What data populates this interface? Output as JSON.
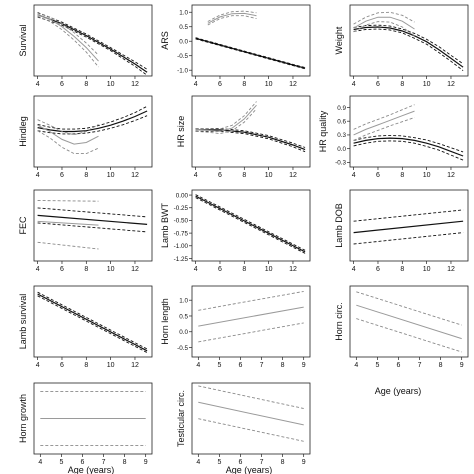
{
  "chart_data": [
    {
      "id": "survival",
      "type": "line",
      "ylabel": "Survival",
      "xlim": [
        3.7,
        13.4
      ],
      "xticks": [
        4,
        6,
        8,
        10,
        12
      ],
      "ylim": [
        -0.6,
        0.35
      ],
      "yticks": [],
      "ytick_labels": [],
      "series": [
        {
          "style": "black",
          "x": [
            4,
            6,
            8,
            10,
            12,
            13
          ],
          "y": [
            0.22,
            0.1,
            -0.06,
            -0.24,
            -0.44,
            -0.55
          ],
          "ci": [
            0.03,
            0.02,
            0.02,
            0.02,
            0.03,
            0.04
          ]
        },
        {
          "style": "grey",
          "x": [
            4,
            5,
            6,
            7,
            8,
            9
          ],
          "y": [
            0.22,
            0.16,
            0.06,
            -0.07,
            -0.22,
            -0.4
          ],
          "ci": [
            0.02,
            0.03,
            0.04,
            0.05,
            0.06,
            0.08
          ]
        }
      ]
    },
    {
      "id": "ars",
      "type": "line",
      "ylabel": "ARS",
      "xlim": [
        3.7,
        13.4
      ],
      "xticks": [
        4,
        6,
        8,
        10,
        12
      ],
      "ylim": [
        -1.2,
        1.25
      ],
      "yticks": [
        -1.0,
        -0.5,
        0.0,
        0.5,
        1.0
      ],
      "ytick_labels": [
        "-1.0",
        "-0.5",
        "0.0",
        "0.5",
        "1.0"
      ],
      "series": [
        {
          "style": "black",
          "x": [
            4,
            6,
            8,
            10,
            12,
            13
          ],
          "y": [
            0.1,
            -0.13,
            -0.36,
            -0.59,
            -0.82,
            -0.93
          ],
          "ci": [
            0.02,
            0.02,
            0.02,
            0.02,
            0.02,
            0.02
          ]
        },
        {
          "style": "grey",
          "x": [
            5,
            6,
            7,
            8,
            9
          ],
          "y": [
            0.62,
            0.84,
            0.95,
            0.96,
            0.88
          ],
          "ci": [
            0.06,
            0.06,
            0.07,
            0.08,
            0.1
          ]
        }
      ]
    },
    {
      "id": "weight",
      "type": "line",
      "ylabel": "Weight",
      "xlim": [
        3.7,
        13.4
      ],
      "xticks": [
        4,
        6,
        8,
        10,
        12
      ],
      "ylim": [
        -0.9,
        0.55
      ],
      "yticks": [],
      "ytick_labels": [],
      "series": [
        {
          "style": "black",
          "x": [
            4,
            5,
            6,
            7,
            8,
            9,
            10,
            11,
            12,
            13
          ],
          "y": [
            0.05,
            0.09,
            0.1,
            0.08,
            0.02,
            -0.08,
            -0.2,
            -0.36,
            -0.54,
            -0.72
          ],
          "ci": [
            0.04,
            0.04,
            0.04,
            0.04,
            0.04,
            0.05,
            0.05,
            0.06,
            0.06,
            0.07
          ]
        },
        {
          "style": "grey",
          "x": [
            4,
            5,
            6,
            7,
            8,
            9
          ],
          "y": [
            0.08,
            0.22,
            0.3,
            0.3,
            0.22,
            0.06
          ],
          "ci": [
            0.08,
            0.08,
            0.09,
            0.1,
            0.12,
            0.14
          ]
        }
      ]
    },
    {
      "id": "hindleg",
      "type": "line",
      "ylabel": "Hindleg",
      "xlim": [
        3.7,
        13.4
      ],
      "xticks": [
        4,
        6,
        8,
        10,
        12
      ],
      "ylim": [
        -0.55,
        0.35
      ],
      "yticks": [],
      "ytick_labels": [],
      "series": [
        {
          "style": "black",
          "x": [
            4,
            5,
            6,
            7,
            8,
            9,
            10,
            11,
            12,
            13
          ],
          "y": [
            -0.05,
            -0.08,
            -0.1,
            -0.1,
            -0.09,
            -0.06,
            -0.02,
            0.03,
            0.09,
            0.16
          ],
          "ci": [
            0.04,
            0.035,
            0.03,
            0.03,
            0.03,
            0.035,
            0.04,
            0.045,
            0.05,
            0.06
          ]
        },
        {
          "style": "grey",
          "x": [
            4,
            5,
            6,
            7,
            8,
            9
          ],
          "y": [
            -0.02,
            -0.1,
            -0.2,
            -0.26,
            -0.24,
            -0.16
          ],
          "ci": [
            0.07,
            0.08,
            0.1,
            0.12,
            0.14,
            0.15
          ]
        }
      ]
    },
    {
      "id": "hr_size",
      "type": "line",
      "ylabel": "HR size",
      "xlim": [
        3.7,
        13.4
      ],
      "xticks": [
        4,
        6,
        8,
        10,
        12
      ],
      "ylim": [
        -0.8,
        0.75
      ],
      "yticks": [],
      "ytick_labels": [],
      "series": [
        {
          "style": "black",
          "x": [
            4,
            6,
            8,
            10,
            12,
            13
          ],
          "y": [
            0.01,
            0.01,
            -0.04,
            -0.15,
            -0.32,
            -0.42
          ],
          "ci": [
            0.03,
            0.03,
            0.03,
            0.035,
            0.04,
            0.045
          ]
        },
        {
          "style": "grey",
          "x": [
            4,
            5,
            6,
            7,
            8,
            9
          ],
          "y": [
            0.01,
            0.0,
            -0.02,
            0.05,
            0.25,
            0.55
          ],
          "ci": [
            0.03,
            0.04,
            0.05,
            0.06,
            0.07,
            0.08
          ]
        }
      ]
    },
    {
      "id": "hr_quality",
      "type": "line",
      "ylabel": "HR quality",
      "xlim": [
        3.7,
        13.4
      ],
      "xticks": [
        4,
        6,
        8,
        10,
        12
      ],
      "ylim": [
        -0.4,
        1.15
      ],
      "yticks": [
        -0.3,
        0.0,
        0.3,
        0.6,
        0.9
      ],
      "ytick_labels": [
        "-0.3",
        "0.0",
        "0.3",
        "0.6",
        "0.9"
      ],
      "series": [
        {
          "style": "black",
          "x": [
            4,
            5,
            6,
            7,
            8,
            9,
            10,
            11,
            12,
            13
          ],
          "y": [
            0.12,
            0.18,
            0.22,
            0.23,
            0.22,
            0.18,
            0.12,
            0.04,
            -0.06,
            -0.16
          ],
          "ci": [
            0.06,
            0.06,
            0.06,
            0.06,
            0.06,
            0.06,
            0.07,
            0.07,
            0.08,
            0.09
          ]
        },
        {
          "style": "grey",
          "x": [
            4,
            5,
            6,
            7,
            8,
            9
          ],
          "y": [
            0.3,
            0.42,
            0.52,
            0.62,
            0.72,
            0.82
          ],
          "ci": [
            0.12,
            0.12,
            0.12,
            0.12,
            0.13,
            0.14
          ]
        }
      ]
    },
    {
      "id": "fec",
      "type": "line",
      "ylabel": "FEC",
      "xlim": [
        3.7,
        13.4
      ],
      "xticks": [
        4,
        6,
        8,
        10,
        12
      ],
      "ylim": [
        -0.55,
        0.4
      ],
      "yticks": [],
      "ytick_labels": [],
      "series": [
        {
          "style": "black",
          "x": [
            4,
            13
          ],
          "y": [
            0.06,
            -0.06
          ],
          "ci": [
            0.1,
            0.1
          ]
        },
        {
          "style": "grey",
          "x": [
            4,
            9
          ],
          "y": [
            -0.02,
            -0.07
          ],
          "ci": [
            0.28,
            0.32
          ]
        }
      ]
    },
    {
      "id": "lamb_bwt",
      "type": "line",
      "ylabel": "Lamb BWT",
      "xlim": [
        3.7,
        13.4
      ],
      "xticks": [
        4,
        6,
        8,
        10,
        12
      ],
      "ylim": [
        -1.3,
        0.1
      ],
      "yticks": [
        0.0,
        -0.25,
        -0.5,
        -0.75,
        -1.0,
        -1.25
      ],
      "ytick_labels": [
        "0.00",
        "-0.25",
        "-0.50",
        "-0.75",
        "-1.00",
        "-1.25"
      ],
      "series": [
        {
          "style": "black",
          "x": [
            4,
            13
          ],
          "y": [
            -0.02,
            -1.12
          ],
          "ci": [
            0.03,
            0.03
          ]
        }
      ]
    },
    {
      "id": "lamb_dob",
      "type": "line",
      "ylabel": "Lamb DOB",
      "xlim": [
        3.7,
        13.4
      ],
      "xticks": [
        4,
        6,
        8,
        10,
        12
      ],
      "ylim": [
        -0.25,
        0.25
      ],
      "yticks": [],
      "ytick_labels": [],
      "series": [
        {
          "style": "black",
          "x": [
            4,
            13
          ],
          "y": [
            -0.05,
            0.03
          ],
          "ci": [
            0.08,
            0.08
          ]
        }
      ]
    },
    {
      "id": "lamb_survival",
      "type": "line",
      "ylabel": "Lamb survival",
      "xlim": [
        3.7,
        13.4
      ],
      "xticks": [
        4,
        6,
        8,
        10,
        12
      ],
      "ylim": [
        -1.3,
        0.3
      ],
      "yticks": [],
      "ytick_labels": [],
      "series": [
        {
          "style": "black",
          "x": [
            4,
            13
          ],
          "y": [
            0.12,
            -1.16
          ],
          "ci": [
            0.04,
            0.04
          ]
        }
      ]
    },
    {
      "id": "horn_length",
      "type": "line",
      "ylabel": "Horn length",
      "xlim": [
        3.7,
        9.3
      ],
      "xticks": [
        4,
        5,
        6,
        7,
        8,
        9
      ],
      "ylim": [
        -0.8,
        1.45
      ],
      "yticks": [
        -0.5,
        0.0,
        0.5,
        1.0
      ],
      "ytick_labels": [
        "-0.5",
        "0.0",
        "0.5",
        "1.0"
      ],
      "series": [
        {
          "style": "grey",
          "x": [
            4,
            9
          ],
          "y": [
            0.18,
            0.78
          ],
          "ci": [
            0.5,
            0.5
          ]
        }
      ]
    },
    {
      "id": "horn_circ",
      "type": "line",
      "ylabel": "Horn circ.",
      "xlim": [
        3.7,
        9.3
      ],
      "xticks": [
        4,
        5,
        6,
        7,
        8,
        9
      ],
      "ylim": [
        -1.2,
        0.65
      ],
      "yticks": [],
      "ytick_labels": [],
      "series": [
        {
          "style": "grey",
          "x": [
            4,
            9
          ],
          "y": [
            0.15,
            -0.72
          ],
          "ci": [
            0.35,
            0.35
          ]
        }
      ]
    },
    {
      "id": "horn_growth",
      "type": "line",
      "ylabel": "Horn growth",
      "xlim": [
        3.7,
        9.3
      ],
      "xticks": [
        4,
        5,
        6,
        7,
        8,
        9
      ],
      "ylim": [
        -0.55,
        0.55
      ],
      "yticks": [],
      "ytick_labels": [],
      "series": [
        {
          "style": "grey",
          "x": [
            4,
            9
          ],
          "y": [
            0.0,
            0.0
          ],
          "ci": [
            0.42,
            0.42
          ]
        }
      ]
    },
    {
      "id": "testicular_circ",
      "type": "line",
      "ylabel": "Testicular circ.",
      "xlim": [
        3.7,
        9.3
      ],
      "xticks": [
        4,
        5,
        6,
        7,
        8,
        9
      ],
      "ylim": [
        -1.3,
        0.65
      ],
      "yticks": [],
      "ytick_labels": [],
      "series": [
        {
          "style": "grey",
          "x": [
            4,
            9
          ],
          "y": [
            0.12,
            -0.5
          ],
          "ci": [
            0.45,
            0.45
          ]
        }
      ]
    }
  ],
  "xlabels": {
    "row4": "Age (years)",
    "row5a": "Age (years)",
    "row5b": "Age (years)"
  }
}
